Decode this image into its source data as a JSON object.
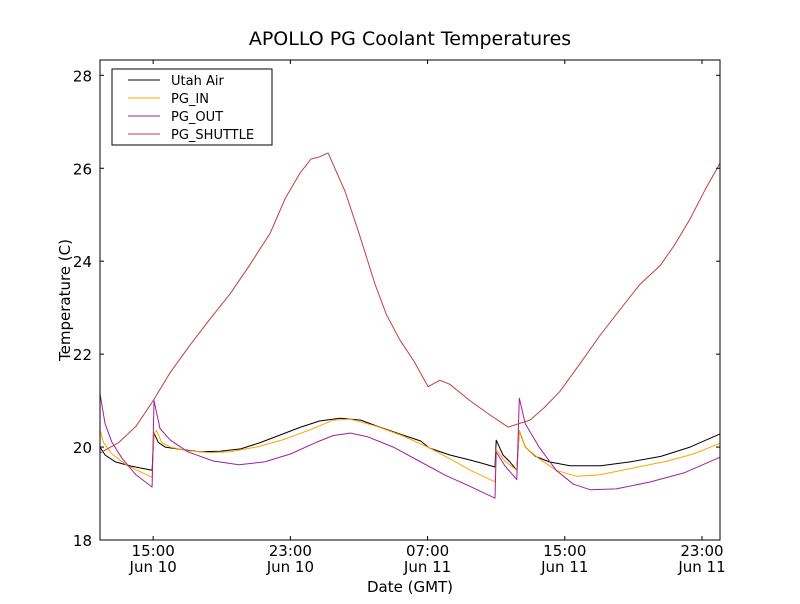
{
  "chart_data": {
    "type": "line",
    "title": "APOLLO PG Coolant Temperatures",
    "xlabel": "Date (GMT)",
    "ylabel": "Temperature (C)",
    "x_units": "hours since Jun 10 00:00 GMT",
    "xlim": [
      11.9,
      48.05
    ],
    "ylim": [
      18,
      28.33
    ],
    "yticks": [
      18,
      20,
      22,
      24,
      26,
      28
    ],
    "xticks": [
      {
        "value": 15,
        "time": "15:00",
        "date": "Jun 10"
      },
      {
        "value": 23,
        "time": "23:00",
        "date": "Jun 10"
      },
      {
        "value": 31,
        "time": "07:00",
        "date": "Jun 11"
      },
      {
        "value": 39,
        "time": "15:00",
        "date": "Jun 11"
      },
      {
        "value": 47,
        "time": "23:00",
        "date": "Jun 11"
      }
    ],
    "legend_position": "top-left",
    "grid": false,
    "series": [
      {
        "name": "Utah Air",
        "color": "#000000",
        "points": [
          [
            11.9,
            20.0
          ],
          [
            12.2,
            19.83
          ],
          [
            12.8,
            19.68
          ],
          [
            13.7,
            19.59
          ],
          [
            14.94,
            19.5
          ],
          [
            15.05,
            20.3
          ],
          [
            15.3,
            20.1
          ],
          [
            15.7,
            20.0
          ],
          [
            16.6,
            19.95
          ],
          [
            17.7,
            19.9
          ],
          [
            18.9,
            19.91
          ],
          [
            20.1,
            19.96
          ],
          [
            21.2,
            20.09
          ],
          [
            22.4,
            20.26
          ],
          [
            23.6,
            20.43
          ],
          [
            24.7,
            20.56
          ],
          [
            25.9,
            20.62
          ],
          [
            27.1,
            20.58
          ],
          [
            28.2,
            20.43
          ],
          [
            29.4,
            20.28
          ],
          [
            30.6,
            20.13
          ],
          [
            31.1,
            19.98
          ],
          [
            32.3,
            19.83
          ],
          [
            33.5,
            19.72
          ],
          [
            34.1,
            19.66
          ],
          [
            34.93,
            19.57
          ],
          [
            35.0,
            20.15
          ],
          [
            35.4,
            19.83
          ],
          [
            35.8,
            19.68
          ],
          [
            36.2,
            19.5
          ],
          [
            36.35,
            20.35
          ],
          [
            36.7,
            20.0
          ],
          [
            37.3,
            19.8
          ],
          [
            38.1,
            19.68
          ],
          [
            39.3,
            19.6
          ],
          [
            41.1,
            19.6
          ],
          [
            42.8,
            19.68
          ],
          [
            44.6,
            19.8
          ],
          [
            46.3,
            20.0
          ],
          [
            48.04,
            20.28
          ]
        ]
      },
      {
        "name": "PG_IN",
        "color": "#ffa500",
        "points": [
          [
            11.9,
            20.37
          ],
          [
            12.1,
            20.1
          ],
          [
            12.6,
            19.85
          ],
          [
            13.5,
            19.6
          ],
          [
            14.94,
            19.35
          ],
          [
            15.05,
            20.3
          ],
          [
            15.2,
            20.35
          ],
          [
            15.5,
            20.1
          ],
          [
            16.0,
            20.0
          ],
          [
            17.0,
            19.92
          ],
          [
            18.3,
            19.88
          ],
          [
            19.5,
            19.9
          ],
          [
            21.0,
            20.0
          ],
          [
            22.5,
            20.15
          ],
          [
            24.0,
            20.35
          ],
          [
            25.5,
            20.58
          ],
          [
            26.5,
            20.6
          ],
          [
            28.0,
            20.45
          ],
          [
            29.5,
            20.25
          ],
          [
            31.0,
            20.0
          ],
          [
            32.3,
            19.75
          ],
          [
            33.5,
            19.5
          ],
          [
            34.93,
            19.25
          ],
          [
            35.0,
            19.95
          ],
          [
            35.5,
            19.7
          ],
          [
            36.2,
            19.5
          ],
          [
            36.35,
            20.35
          ],
          [
            36.7,
            20.0
          ],
          [
            37.5,
            19.75
          ],
          [
            38.5,
            19.5
          ],
          [
            39.7,
            19.37
          ],
          [
            41.0,
            19.4
          ],
          [
            43.0,
            19.55
          ],
          [
            45.0,
            19.7
          ],
          [
            46.5,
            19.85
          ],
          [
            48.04,
            20.08
          ]
        ]
      },
      {
        "name": "PG_OUT",
        "color": "#a020a0",
        "points": [
          [
            11.9,
            21.15
          ],
          [
            12.2,
            20.5
          ],
          [
            12.6,
            20.1
          ],
          [
            13.2,
            19.75
          ],
          [
            14.0,
            19.4
          ],
          [
            14.94,
            19.14
          ],
          [
            15.05,
            21.0
          ],
          [
            15.4,
            20.4
          ],
          [
            16.0,
            20.15
          ],
          [
            17.0,
            19.9
          ],
          [
            18.5,
            19.7
          ],
          [
            20.0,
            19.62
          ],
          [
            21.5,
            19.68
          ],
          [
            23.0,
            19.85
          ],
          [
            24.5,
            20.1
          ],
          [
            25.5,
            20.25
          ],
          [
            26.5,
            20.3
          ],
          [
            27.5,
            20.22
          ],
          [
            29.0,
            20.0
          ],
          [
            30.5,
            19.7
          ],
          [
            32.0,
            19.4
          ],
          [
            33.5,
            19.15
          ],
          [
            34.93,
            18.9
          ],
          [
            35.0,
            19.9
          ],
          [
            35.5,
            19.6
          ],
          [
            36.2,
            19.3
          ],
          [
            36.35,
            21.05
          ],
          [
            36.7,
            20.5
          ],
          [
            37.5,
            20.0
          ],
          [
            38.5,
            19.5
          ],
          [
            39.5,
            19.2
          ],
          [
            40.5,
            19.08
          ],
          [
            42.0,
            19.1
          ],
          [
            44.0,
            19.25
          ],
          [
            46.0,
            19.45
          ],
          [
            48.04,
            19.78
          ]
        ]
      },
      {
        "name": "PG_SHUTTLE",
        "color": "#c04040",
        "points": [
          [
            11.9,
            19.87
          ],
          [
            13.0,
            20.1
          ],
          [
            14.0,
            20.45
          ],
          [
            15.0,
            21.0
          ],
          [
            15.99,
            21.6
          ],
          [
            17.16,
            22.2
          ],
          [
            18.3,
            22.75
          ],
          [
            19.49,
            23.3
          ],
          [
            20.6,
            23.9
          ],
          [
            21.82,
            24.6
          ],
          [
            22.7,
            25.35
          ],
          [
            23.57,
            25.9
          ],
          [
            24.2,
            26.2
          ],
          [
            24.73,
            26.25
          ],
          [
            25.2,
            26.33
          ],
          [
            26.19,
            25.5
          ],
          [
            27.0,
            24.6
          ],
          [
            27.94,
            23.5
          ],
          [
            28.6,
            22.85
          ],
          [
            29.39,
            22.3
          ],
          [
            30.2,
            21.85
          ],
          [
            31.03,
            21.3
          ],
          [
            31.72,
            21.44
          ],
          [
            32.3,
            21.35
          ],
          [
            33.47,
            21.0
          ],
          [
            34.6,
            20.7
          ],
          [
            35.69,
            20.43
          ],
          [
            36.97,
            20.58
          ],
          [
            37.8,
            20.85
          ],
          [
            38.72,
            21.2
          ],
          [
            39.9,
            21.8
          ],
          [
            41.05,
            22.4
          ],
          [
            42.2,
            22.95
          ],
          [
            43.38,
            23.5
          ],
          [
            44.55,
            23.9
          ],
          [
            45.4,
            24.35
          ],
          [
            46.29,
            24.9
          ],
          [
            47.2,
            25.55
          ],
          [
            48.04,
            26.1
          ]
        ]
      }
    ]
  }
}
